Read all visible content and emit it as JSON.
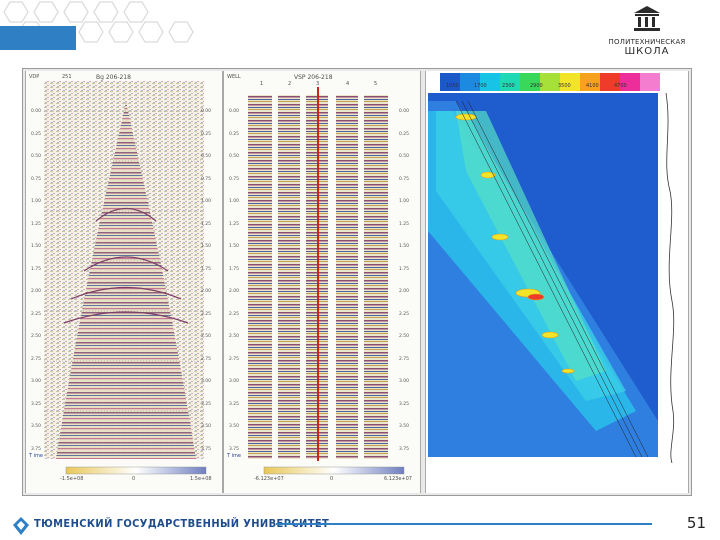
{
  "brand": {
    "school_line1": "ПОЛИТЕХНИЧЕСКАЯ",
    "school_line2": "ШКОЛА",
    "university": "ТЮМЕНСКИЙ ГОСУДАРСТВЕННЫЙ УНИВЕРСИТЕТ",
    "page_number": "51",
    "accent_color": "#2f7fc4",
    "hex_color": "#d9d9d9"
  },
  "panels": {
    "left": {
      "title": "Bg 206-218",
      "label_top": "VDP",
      "label_top_val": "251",
      "depth_ticks": [
        "0.00",
        "0.25",
        "0.50",
        "0.75",
        "1.00",
        "1.25",
        "1.50",
        "1.75",
        "2.00",
        "2.25",
        "2.50",
        "2.75",
        "3.00",
        "3.25",
        "3.50",
        "3.75"
      ],
      "scale_min": "-1.5e+08",
      "scale_mid": "0",
      "scale_max": "1.5e+08",
      "time_label": "T ime"
    },
    "middle": {
      "title": "VSP 206-218",
      "label_top": "WELL",
      "trace_numbers": [
        "1",
        "2",
        "3",
        "4",
        "5"
      ],
      "depth_ticks": [
        "0.00",
        "0.25",
        "0.50",
        "0.75",
        "1.00",
        "1.25",
        "1.50",
        "1.75",
        "2.00",
        "2.25",
        "2.50",
        "2.75",
        "3.00",
        "3.25",
        "3.50",
        "3.75"
      ],
      "scale_min": "-6.123e+07",
      "scale_mid": "0",
      "scale_max": "6.123e+07",
      "time_label": "T ime"
    },
    "right": {
      "color_scale_values": [
        "1050",
        "1700",
        "2300",
        "2900",
        "3500",
        "4100",
        "4700"
      ]
    }
  }
}
